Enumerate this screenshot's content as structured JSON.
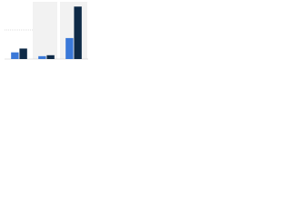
{
  "chart_data": {
    "type": "bar",
    "categories": [
      null,
      null,
      null
    ],
    "series": [
      {
        "color": "#3a78d8",
        "values": [
          7,
          3,
          22
        ]
      },
      {
        "color": "#0e2a47",
        "values": [
          11,
          4,
          55
        ]
      }
    ],
    "ylim": [
      0,
      60
    ]
  }
}
